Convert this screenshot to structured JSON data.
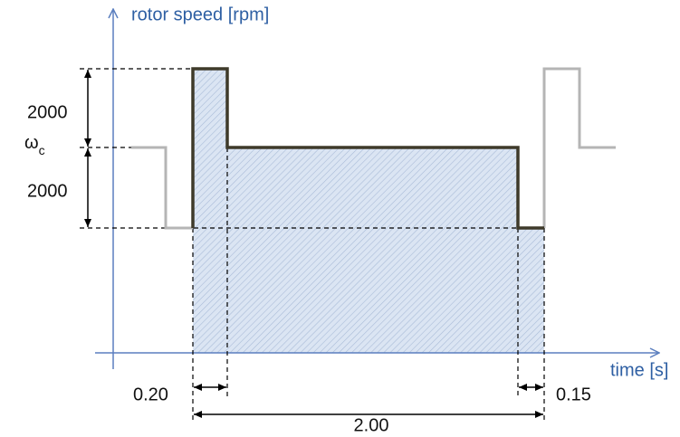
{
  "axes": {
    "y_label": "rotor speed [rpm]",
    "x_label": "time [s]"
  },
  "levels": {
    "omega": "ω",
    "subscript": "c"
  },
  "dimensions": {
    "upper": "2000",
    "lower": "2000",
    "rise": "0.20",
    "fall": "0.15",
    "total": "2.00"
  }
}
